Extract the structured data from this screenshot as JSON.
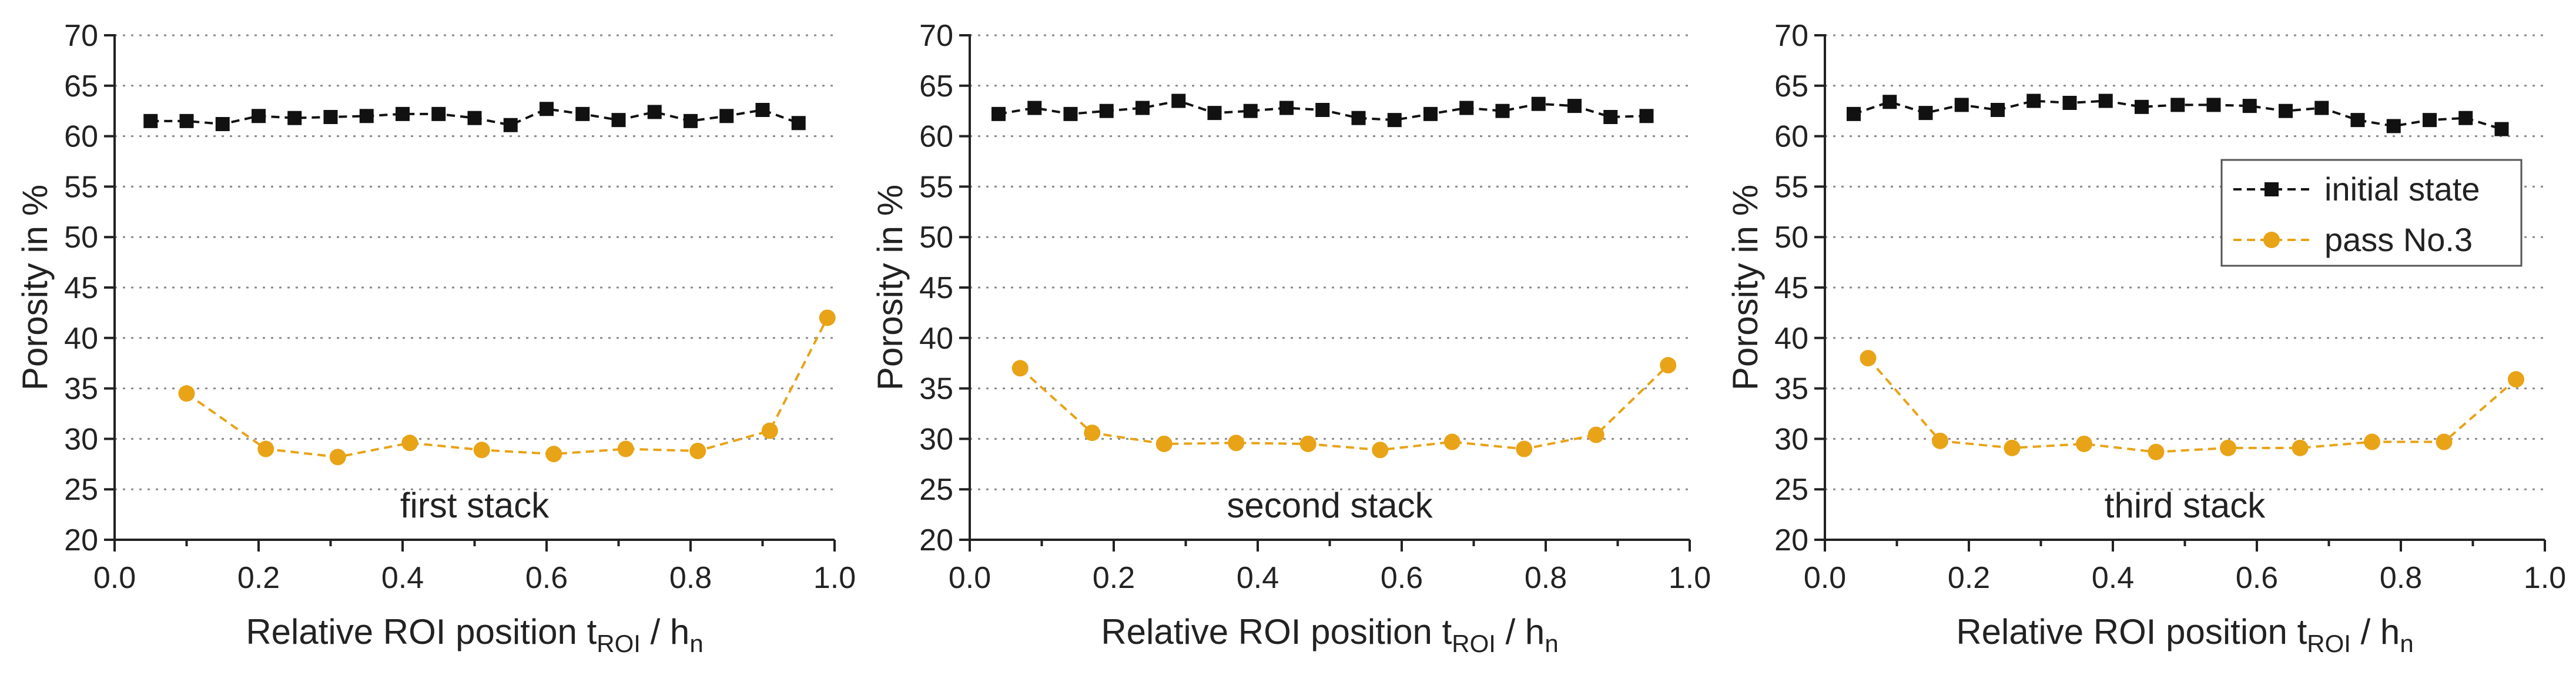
{
  "chart_data": [
    {
      "type": "line",
      "annotation": "first stack",
      "xlabel": "Relative ROI position t",
      "xlabel_sub1": "ROI",
      "xlabel_mid": " / h",
      "xlabel_sub2": "n",
      "ylabel": "Porosity in %",
      "xlim": [
        0,
        1.0
      ],
      "ylim": [
        20,
        70
      ],
      "xticks": [
        "0.0",
        "0.2",
        "0.4",
        "0.6",
        "0.8",
        "1.0"
      ],
      "yticks": [
        "20",
        "25",
        "30",
        "35",
        "40",
        "45",
        "50",
        "55",
        "60",
        "65",
        "70"
      ],
      "grid": "horizontal dotted",
      "legend": null,
      "series": [
        {
          "name": "initial state",
          "marker": "square",
          "color": "#111111",
          "x": [
            0.05,
            0.1,
            0.15,
            0.2,
            0.25,
            0.3,
            0.35,
            0.4,
            0.45,
            0.5,
            0.55,
            0.6,
            0.65,
            0.7,
            0.75,
            0.8,
            0.85,
            0.9,
            0.95
          ],
          "y": [
            61.5,
            61.5,
            61.2,
            62.0,
            61.8,
            61.9,
            62.0,
            62.2,
            62.2,
            61.8,
            61.1,
            62.7,
            62.2,
            61.6,
            62.4,
            61.5,
            62.0,
            62.6,
            61.3
          ]
        },
        {
          "name": "pass No.3",
          "marker": "circle",
          "color": "#E8A317",
          "x": [
            0.1,
            0.21,
            0.31,
            0.41,
            0.51,
            0.61,
            0.71,
            0.81,
            0.91,
            0.99
          ],
          "y": [
            34.5,
            29.0,
            28.2,
            29.6,
            28.9,
            28.5,
            29.0,
            28.8,
            30.8,
            42.0
          ]
        }
      ]
    },
    {
      "type": "line",
      "annotation": "second stack",
      "xlabel": "Relative ROI position t",
      "xlabel_sub1": "ROI",
      "xlabel_mid": " / h",
      "xlabel_sub2": "n",
      "ylabel": "Porosity in %",
      "xlim": [
        0,
        1.0
      ],
      "ylim": [
        20,
        70
      ],
      "xticks": [
        "0.0",
        "0.2",
        "0.4",
        "0.6",
        "0.8",
        "1.0"
      ],
      "yticks": [
        "20",
        "25",
        "30",
        "35",
        "40",
        "45",
        "50",
        "55",
        "60",
        "65",
        "70"
      ],
      "grid": "horizontal dotted",
      "legend": null,
      "series": [
        {
          "name": "initial state",
          "marker": "square",
          "color": "#111111",
          "x": [
            0.04,
            0.09,
            0.14,
            0.19,
            0.24,
            0.29,
            0.34,
            0.39,
            0.44,
            0.49,
            0.54,
            0.59,
            0.64,
            0.69,
            0.74,
            0.79,
            0.84,
            0.89,
            0.94
          ],
          "y": [
            62.2,
            62.8,
            62.2,
            62.5,
            62.8,
            63.5,
            62.3,
            62.5,
            62.8,
            62.6,
            61.8,
            61.6,
            62.2,
            62.8,
            62.5,
            63.2,
            63.0,
            61.9,
            62.0
          ]
        },
        {
          "name": "pass No.3",
          "marker": "circle",
          "color": "#E8A317",
          "x": [
            0.07,
            0.17,
            0.27,
            0.37,
            0.47,
            0.57,
            0.67,
            0.77,
            0.87,
            0.97
          ],
          "y": [
            37.0,
            30.6,
            29.5,
            29.6,
            29.5,
            28.9,
            29.7,
            29.0,
            30.4,
            37.3
          ]
        }
      ]
    },
    {
      "type": "line",
      "annotation": "third stack",
      "xlabel": "Relative ROI position t",
      "xlabel_sub1": "ROI",
      "xlabel_mid": " / h",
      "xlabel_sub2": "n",
      "ylabel": "Porosity in %",
      "xlim": [
        0,
        1.0
      ],
      "ylim": [
        20,
        70
      ],
      "xticks": [
        "0.0",
        "0.2",
        "0.4",
        "0.6",
        "0.8",
        "1.0"
      ],
      "yticks": [
        "20",
        "25",
        "30",
        "35",
        "40",
        "45",
        "50",
        "55",
        "60",
        "65",
        "70"
      ],
      "grid": "horizontal dotted",
      "legend": "top-right",
      "series": [
        {
          "name": "initial state",
          "marker": "square",
          "color": "#111111",
          "x": [
            0.04,
            0.09,
            0.14,
            0.19,
            0.24,
            0.29,
            0.34,
            0.39,
            0.44,
            0.49,
            0.54,
            0.59,
            0.64,
            0.69,
            0.74,
            0.79,
            0.84,
            0.89,
            0.94
          ],
          "y": [
            62.2,
            63.4,
            62.3,
            63.1,
            62.6,
            63.5,
            63.3,
            63.5,
            62.9,
            63.1,
            63.1,
            63.0,
            62.5,
            62.8,
            61.6,
            61.0,
            61.6,
            61.8,
            60.7
          ]
        },
        {
          "name": "pass No.3",
          "marker": "circle",
          "color": "#E8A317",
          "x": [
            0.06,
            0.16,
            0.26,
            0.36,
            0.46,
            0.56,
            0.66,
            0.76,
            0.86,
            0.96
          ],
          "y": [
            38.0,
            29.8,
            29.1,
            29.5,
            28.7,
            29.1,
            29.1,
            29.7,
            29.7,
            35.9
          ]
        }
      ]
    }
  ]
}
